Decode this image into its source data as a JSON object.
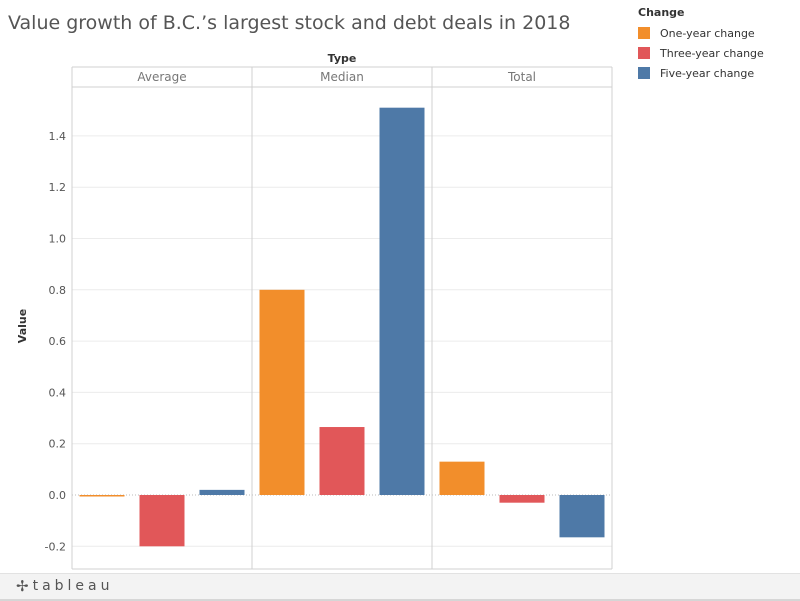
{
  "title": "Value growth of B.C.’s largest stock and debt deals in 2018",
  "legend": {
    "title": "Change",
    "items": [
      {
        "label": "One-year change",
        "color": "#f28e2b"
      },
      {
        "label": "Three-year change",
        "color": "#e15759"
      },
      {
        "label": "Five-year change",
        "color": "#4e79a7"
      }
    ]
  },
  "footer": {
    "logo_text": "tableau",
    "logo_mark": "✢"
  },
  "chart_data": {
    "type": "bar",
    "column_header": "Type",
    "ylabel": "Value",
    "ylim": [
      -0.2,
      1.5
    ],
    "yticks": [
      -0.2,
      0.0,
      0.2,
      0.4,
      0.6,
      0.8,
      1.0,
      1.2,
      1.4
    ],
    "ytick_labels": [
      "-0.2",
      "0.0",
      "0.2",
      "0.4",
      "0.6",
      "0.8",
      "1.0",
      "1.2",
      "1.4"
    ],
    "panels": [
      "Average",
      "Median",
      "Total"
    ],
    "series": [
      {
        "name": "One-year change",
        "color": "#f28e2b",
        "values": [
          -0.005,
          0.8,
          0.13
        ]
      },
      {
        "name": "Three-year change",
        "color": "#e15759",
        "values": [
          -0.2,
          0.265,
          -0.03
        ]
      },
      {
        "name": "Five-year change",
        "color": "#4e79a7",
        "values": [
          0.02,
          1.51,
          -0.165
        ]
      }
    ],
    "grid": true,
    "legend_position": "top-right"
  }
}
